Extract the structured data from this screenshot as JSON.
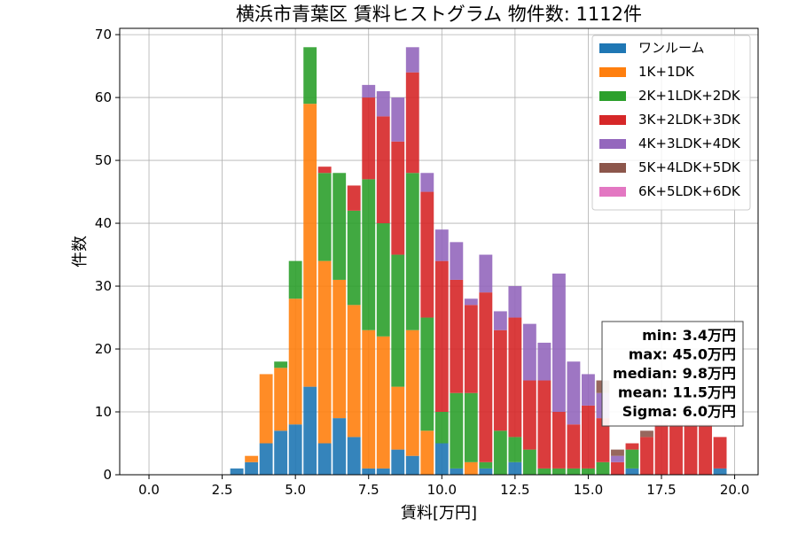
{
  "chart_data": {
    "type": "bar",
    "stacked": true,
    "title": "横浜市青葉区 賃料ヒストグラム 物件数: 1112件",
    "xlabel": "賃料[万円]",
    "ylabel": "件数",
    "xlim": [
      -1.0,
      20.8
    ],
    "ylim": [
      0,
      71
    ],
    "xticks": [
      0.0,
      2.5,
      5.0,
      7.5,
      10.0,
      12.5,
      15.0,
      17.5,
      20.0
    ],
    "xtick_labels": [
      "0.0",
      "2.5",
      "5.0",
      "7.5",
      "10.0",
      "12.5",
      "15.0",
      "17.5",
      "20.0"
    ],
    "yticks": [
      0,
      10,
      20,
      30,
      40,
      50,
      60,
      70
    ],
    "ytick_labels": [
      "0",
      "10",
      "20",
      "30",
      "40",
      "50",
      "60",
      "70"
    ],
    "grid": true,
    "legend_position": "top-right",
    "bin_width": 0.5,
    "bar_width": 0.45,
    "x": [
      3,
      3.5,
      4,
      4.5,
      5,
      5.5,
      6,
      6.5,
      7,
      7.5,
      8,
      8.5,
      9,
      9.5,
      10,
      10.5,
      11,
      11.5,
      12,
      12.5,
      13,
      13.5,
      14,
      14.5,
      15,
      15.5,
      16,
      16.5,
      17,
      17.5,
      18,
      18.5,
      19,
      19.5
    ],
    "series": [
      {
        "name": "ワンルーム",
        "color": "#1f77b4",
        "values": [
          1,
          2,
          5,
          7,
          8,
          14,
          5,
          9,
          6,
          1,
          1,
          4,
          3,
          0,
          5,
          1,
          0,
          1,
          0,
          2,
          0,
          0,
          0,
          0,
          0,
          0,
          0,
          1,
          0,
          0,
          0,
          0,
          0,
          1
        ]
      },
      {
        "name": "1K+1DK",
        "color": "#ff7f0e",
        "values": [
          0,
          1,
          11,
          10,
          20,
          45,
          29,
          22,
          21,
          22,
          21,
          10,
          20,
          7,
          0,
          0,
          2,
          0,
          0,
          0,
          0,
          0,
          0,
          0,
          0,
          0,
          0,
          0,
          0,
          0,
          0,
          0,
          0,
          0
        ]
      },
      {
        "name": "2K+1LDK+2DK",
        "color": "#2ca02c",
        "values": [
          0,
          0,
          0,
          1,
          6,
          9,
          14,
          17,
          15,
          24,
          18,
          21,
          25,
          18,
          5,
          12,
          11,
          1,
          7,
          4,
          4,
          1,
          1,
          1,
          1,
          2,
          0,
          3,
          0,
          0,
          0,
          0,
          0,
          0
        ]
      },
      {
        "name": "3K+2LDK+3DK",
        "color": "#d62728",
        "values": [
          0,
          0,
          0,
          0,
          0,
          0,
          1,
          0,
          4,
          13,
          17,
          18,
          16,
          20,
          24,
          18,
          14,
          27,
          16,
          19,
          11,
          14,
          9,
          7,
          10,
          7,
          2,
          1,
          6,
          8,
          8,
          8,
          8,
          5
        ]
      },
      {
        "name": "4K+3LDK+4DK",
        "color": "#9467bd",
        "values": [
          0,
          0,
          0,
          0,
          0,
          0,
          0,
          0,
          0,
          2,
          4,
          7,
          4,
          3,
          5,
          6,
          1,
          6,
          3,
          5,
          9,
          6,
          22,
          10,
          5,
          4,
          1,
          0,
          0,
          0,
          0,
          0,
          0,
          0
        ]
      },
      {
        "name": "5K+4LDK+5DK",
        "color": "#8c564b",
        "values": [
          0,
          0,
          0,
          0,
          0,
          0,
          0,
          0,
          0,
          0,
          0,
          0,
          0,
          0,
          0,
          0,
          0,
          0,
          0,
          0,
          0,
          0,
          0,
          0,
          0,
          2,
          1,
          0,
          1,
          0,
          0,
          0,
          0,
          0
        ]
      },
      {
        "name": "6K+5LDK+6DK",
        "color": "#e377c2",
        "values": [
          0,
          0,
          0,
          0,
          0,
          0,
          0,
          0,
          0,
          0,
          0,
          0,
          0,
          0,
          0,
          0,
          0,
          0,
          0,
          0,
          0,
          0,
          0,
          0,
          0,
          0,
          0,
          0,
          0,
          0,
          0,
          0,
          0,
          0
        ]
      }
    ],
    "annotations": [
      "min: 3.4万円",
      "max: 45.0万円",
      "median: 9.8万円",
      "mean: 11.5万円",
      "Sigma: 6.0万円"
    ]
  }
}
